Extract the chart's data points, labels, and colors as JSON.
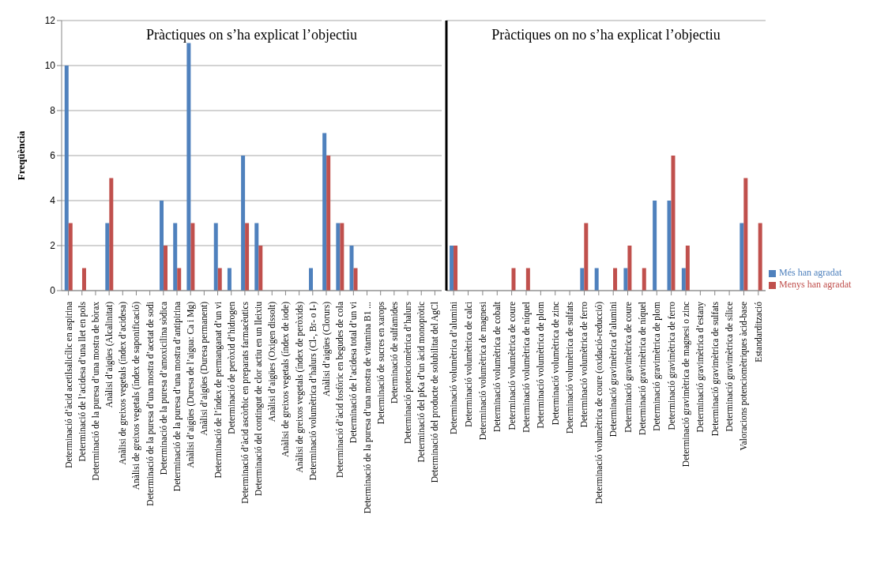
{
  "chart_data": [
    {
      "type": "bar",
      "title": "Pràctiques on s’ha explicat l’objectiu",
      "ylabel": "Freqüència",
      "categories": [
        "Determinació d’àcid acetilsalicílic en aspirina",
        "Determinació de l’acidesa d’una llet en pols",
        "Determinació de la puresa d’una mostra de bòrax",
        "Anàlisi d’aigües (Alcalinitat)",
        "Anàlisi de greixos vegetals (índex d’acidesa)",
        "Anàlisi de greixos vegetals (índex de saponificació)",
        "Determinació de la puresa d’una mostra d’acetat de sodi",
        "Determinació de la puresa d’amoxicilina sòdica",
        "Determinació de la puresa d’una mostra d’antipirina",
        "Anàlisi d’aigües (Duresa de l’aigua: Ca i Mg)",
        "Anàlisi d’aigües (Duresa permanent)",
        "Determinació de l’índex de permanganat d’un vi",
        "Determinació de peròxid d’hidrogen",
        "Determinació d’àcid ascòrbic en preparats farmacèutics",
        "Determinació del contingut de clor actiu en un lleixiu",
        "Anàlisi d’aigües (Oxigen dissolt)",
        "Anàlisi de greixos vegetals (índex de iode)",
        "Anàlisi de greixos vegetals (índex de peròxids)",
        "Determinació volumètrica d’halurs (Cl-, Br- o I-)",
        "Anàlisi d’aigües (Clorurs)",
        "Determinació d’àcid fosfòric en begudes de cola",
        "Determinació de l’acidesa total d’un vi",
        "Determinació de la puresa d’una mostra de vitamina B1 ...",
        "Determinació de sucres en xarops",
        "Determinació de sulfamides",
        "Determinació potenciomètrica d’halurs",
        "Determinació del pKa d’un àcid monopròtic",
        "Determinació del producte de solubilitat del AgCl"
      ],
      "series": [
        {
          "color": "#4f81bd",
          "values": [
            10,
            0,
            0,
            3,
            0,
            0,
            0,
            4,
            3,
            11,
            0,
            3,
            1,
            6,
            3,
            0,
            0,
            0,
            1,
            7,
            3,
            2,
            0,
            0,
            0,
            0,
            0,
            0
          ]
        },
        {
          "color": "#c0504d",
          "values": [
            3,
            1,
            0,
            5,
            0,
            0,
            0,
            2,
            1,
            3,
            0,
            1,
            0,
            3,
            2,
            0,
            0,
            0,
            0,
            6,
            3,
            1,
            0,
            0,
            0,
            0,
            0,
            0
          ]
        }
      ],
      "ylim": [
        0,
        12
      ],
      "yticks": [
        0,
        2,
        4,
        6,
        8,
        10,
        12
      ],
      "grid": "y"
    },
    {
      "type": "bar",
      "title": "Pràctiques on no s’ha explicat l’objectiu",
      "categories": [
        "Determinació volumètrica d’alumini",
        "Determinació volumètrica de calci",
        "Determinació volumètrica de magnesi",
        "Determinació volumètrica de cobalt",
        "Determinació volumètrica de coure",
        "Determinació volumètrica de níquel",
        "Determinació volumètrica de plom",
        "Determinació volumètrica de zinc",
        "Determinació volumètrica de sulfats",
        "Determinació volumètrica de ferro",
        "Determinació volumètrica de coure (oxidació-reducció)",
        "Determinació gravimètrica d’alumini",
        "Determinació gravimètrica de coure",
        "Determinació gravimètrica de níquel",
        "Determinació gravimètrica de plom",
        "Determinació gravimètrica de ferro",
        "Determinació gravimètrica de magnesi o zinc",
        "Determinació gravimètrica d’estany",
        "Determinació gravimètrica de sulfats",
        "Determinació gravimètrica de sílice",
        "Valoracions potenciomètriques àcid-base",
        "Estandardització"
      ],
      "series": [
        {
          "name": "Més han agradat",
          "color": "#4f81bd",
          "values": [
            2,
            0,
            0,
            0,
            0,
            0,
            0,
            0,
            0,
            1,
            1,
            0,
            1,
            0,
            4,
            4,
            1,
            0,
            0,
            0,
            3,
            0
          ]
        },
        {
          "name": "Menys han agradat",
          "color": "#c0504d",
          "values": [
            2,
            0,
            0,
            0,
            1,
            1,
            0,
            0,
            0,
            3,
            0,
            1,
            2,
            1,
            0,
            6,
            2,
            0,
            0,
            0,
            5,
            3
          ]
        }
      ],
      "ylim": [
        0,
        12
      ],
      "yticks": [
        0,
        2,
        4,
        6,
        8,
        10,
        12
      ],
      "grid": "y",
      "tick_labels": "x",
      "legend": "right"
    }
  ]
}
